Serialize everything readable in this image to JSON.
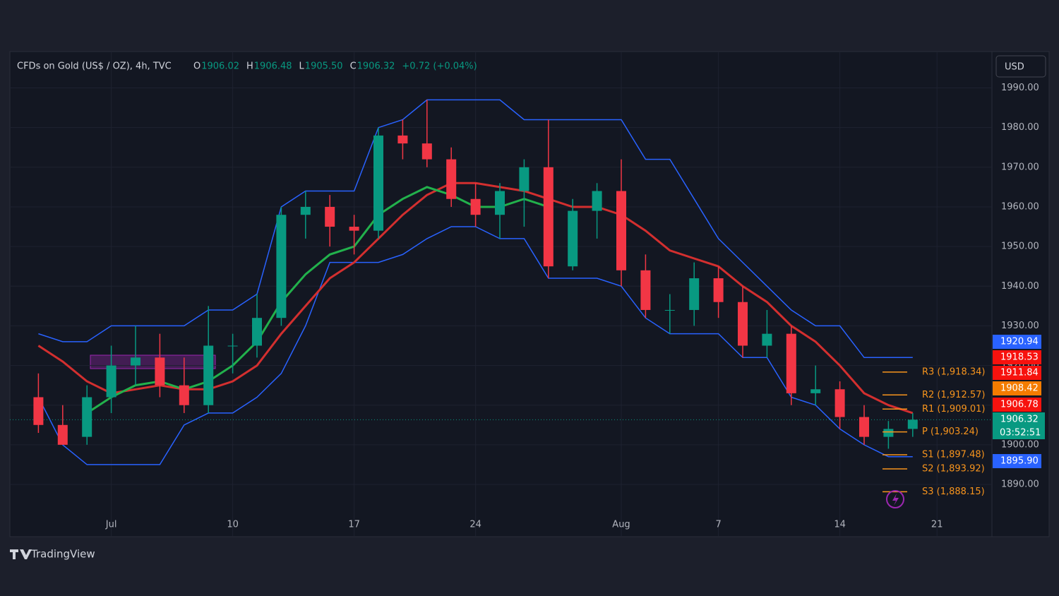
{
  "chart_data": {
    "type": "candlestick",
    "title": "CFDs on Gold (US$ / OZ), 4h, TVC",
    "header_values": [
      {
        "key": "O",
        "value": 1906.02
      },
      {
        "key": "H",
        "value": 1906.48
      },
      {
        "key": "L",
        "value": 1905.5,
        "label": "1905.50"
      },
      {
        "key": "C",
        "value": 1906.32
      }
    ],
    "change": "+0.72 (+0.04%)",
    "currency": "USD",
    "brand": "TradingView",
    "categories": [
      null,
      null,
      null,
      "Jul",
      null,
      null,
      null,
      null,
      "10",
      null,
      null,
      null,
      null,
      "17",
      null,
      null,
      null,
      null,
      "24",
      null,
      null,
      null,
      null,
      null,
      "Aug",
      null,
      null,
      null,
      "7",
      null,
      null,
      null,
      null,
      "14",
      null,
      null,
      null,
      "21"
    ],
    "open": [
      1912,
      1905,
      1902,
      1912,
      1920,
      1922,
      1915,
      1910,
      1925,
      1925,
      1932,
      1958,
      1960,
      1955,
      1954,
      1978,
      1976,
      1972,
      1962,
      1958,
      1964,
      1970,
      1945,
      1959,
      1964,
      1944,
      1934,
      1934,
      1942,
      1936,
      1925,
      1928,
      1913,
      1914,
      1907,
      1902,
      1904,
      null
    ],
    "high": [
      1918,
      1910,
      1915,
      1925,
      1930,
      1928,
      1922,
      1935,
      1928,
      1938,
      1960,
      1964,
      1963,
      1958,
      1980,
      1982,
      1987,
      1975,
      1966,
      1966,
      1972,
      1982,
      1962,
      1966,
      1972,
      1948,
      1938,
      1946,
      1945,
      1940,
      1934,
      1930,
      1920,
      1916,
      1910,
      1906,
      1908,
      null
    ],
    "low": [
      1903,
      1900,
      1900,
      1908,
      1915,
      1912,
      1908,
      1908,
      1918,
      1922,
      1930,
      1952,
      1950,
      1948,
      1952,
      1972,
      1970,
      1960,
      1955,
      1952,
      1955,
      1942,
      1944,
      1952,
      1940,
      1932,
      1928,
      1930,
      1932,
      1922,
      1922,
      1910,
      1910,
      1904,
      1900,
      1899,
      1902,
      null
    ],
    "close": [
      1905,
      1900,
      1912,
      1920,
      1922,
      1915,
      1910,
      1925,
      1925,
      1932,
      1958,
      1960,
      1955,
      1954,
      1978,
      1976,
      1972,
      1962,
      1958,
      1964,
      1970,
      1945,
      1959,
      1964,
      1944,
      1934,
      1934,
      1942,
      1936,
      1925,
      1928,
      1913,
      1914,
      1907,
      1902,
      1904,
      1906.32,
      null
    ],
    "up_color": "#089981",
    "down_color": "#f23645",
    "overlays": [
      {
        "color": "#2962ff",
        "values": [
          1928,
          1926,
          1926,
          1930,
          1930,
          1930,
          1930,
          1934,
          1934,
          1938,
          1960,
          1964,
          1964,
          1964,
          1980,
          1982,
          1987,
          1987,
          1987,
          1987,
          1982,
          1982,
          1982,
          1982,
          1982,
          1972,
          1972,
          1962,
          1952,
          1946,
          1940,
          1934,
          1930,
          1930,
          1922,
          1922,
          1922,
          null
        ]
      },
      {
        "color": "#2962ff",
        "values": [
          1912,
          1900,
          1895,
          1895,
          1895,
          1895,
          1905,
          1908,
          1908,
          1912,
          1918,
          1930,
          1946,
          1946,
          1946,
          1948,
          1952,
          1955,
          1955,
          1952,
          1952,
          1942,
          1942,
          1942,
          1940,
          1932,
          1928,
          1928,
          1928,
          1922,
          1922,
          1912,
          1910,
          1904,
          1900,
          1897,
          1897,
          null
        ]
      },
      {
        "color": "#d32f2f",
        "values": [
          1925,
          1921,
          1916,
          1913,
          1914,
          1915,
          1914,
          1914,
          1916,
          1920,
          1928,
          1935,
          1942,
          1946,
          1952,
          1958,
          1963,
          1966,
          1966,
          1965,
          1964,
          1962,
          1960,
          1960,
          1958,
          1954,
          1949,
          1947,
          1945,
          1940,
          1936,
          1930,
          1926,
          1920,
          1913,
          1910,
          1908,
          null
        ]
      },
      {
        "color": "#22b14c",
        "values": [
          null,
          null,
          1908,
          1912,
          1915,
          1916,
          1914,
          1916,
          1920,
          1926,
          1936,
          1943,
          1948,
          1950,
          1958,
          1962,
          1965,
          1963,
          1960,
          1960,
          1962,
          1960,
          null,
          null,
          null,
          null,
          null,
          null,
          null,
          null,
          null,
          null,
          null,
          null,
          null,
          null,
          null,
          null
        ]
      }
    ],
    "pivots": [
      {
        "label": "R3 (1,918.34)",
        "value": 1918.34
      },
      {
        "label": "R2 (1,912.57)",
        "value": 1912.57
      },
      {
        "label": "R1 (1,909.01)",
        "value": 1909.01
      },
      {
        "label": "P (1,903.24)",
        "value": 1903.24
      },
      {
        "label": "S1 (1,897.48)",
        "value": 1897.48
      },
      {
        "label": "S2 (1,893.92)",
        "value": 1893.92
      },
      {
        "label": "S3 (1,888.15)",
        "value": 1888.15
      }
    ],
    "pivot_color": "#f7941d",
    "price_tags": [
      {
        "value": 1920.94,
        "color": "#2962ff"
      },
      {
        "value": 1918.53,
        "color": "#f7120e"
      },
      {
        "value": 1911.84,
        "color": "#f7120e"
      },
      {
        "value": 1908.42,
        "color": "#f57c00"
      },
      {
        "value": 1906.78,
        "color": "#f7120e"
      },
      {
        "value": 1906.32,
        "color": "#089981",
        "countdown": "03:52:51"
      },
      {
        "value": 1895.9,
        "label": "1895.90",
        "color": "#2962ff"
      }
    ],
    "ylim": [
      1877,
      1999
    ],
    "yticks": [
      {
        "value": 1890,
        "label": "1890.00"
      },
      {
        "value": 1900,
        "label": "1900.00"
      },
      {
        "value": 1910,
        "label": "1910.00"
      },
      {
        "value": 1920,
        "label": "1920.00"
      },
      {
        "value": 1930,
        "label": "1930.00"
      },
      {
        "value": 1940,
        "label": "1940.00"
      },
      {
        "value": 1950,
        "label": "1950.00"
      },
      {
        "value": 1960,
        "label": "1960.00"
      },
      {
        "value": 1970,
        "label": "1970.00"
      },
      {
        "value": 1980,
        "label": "1980.00"
      },
      {
        "value": 1990,
        "label": "1990.00"
      }
    ],
    "grid": true
  }
}
